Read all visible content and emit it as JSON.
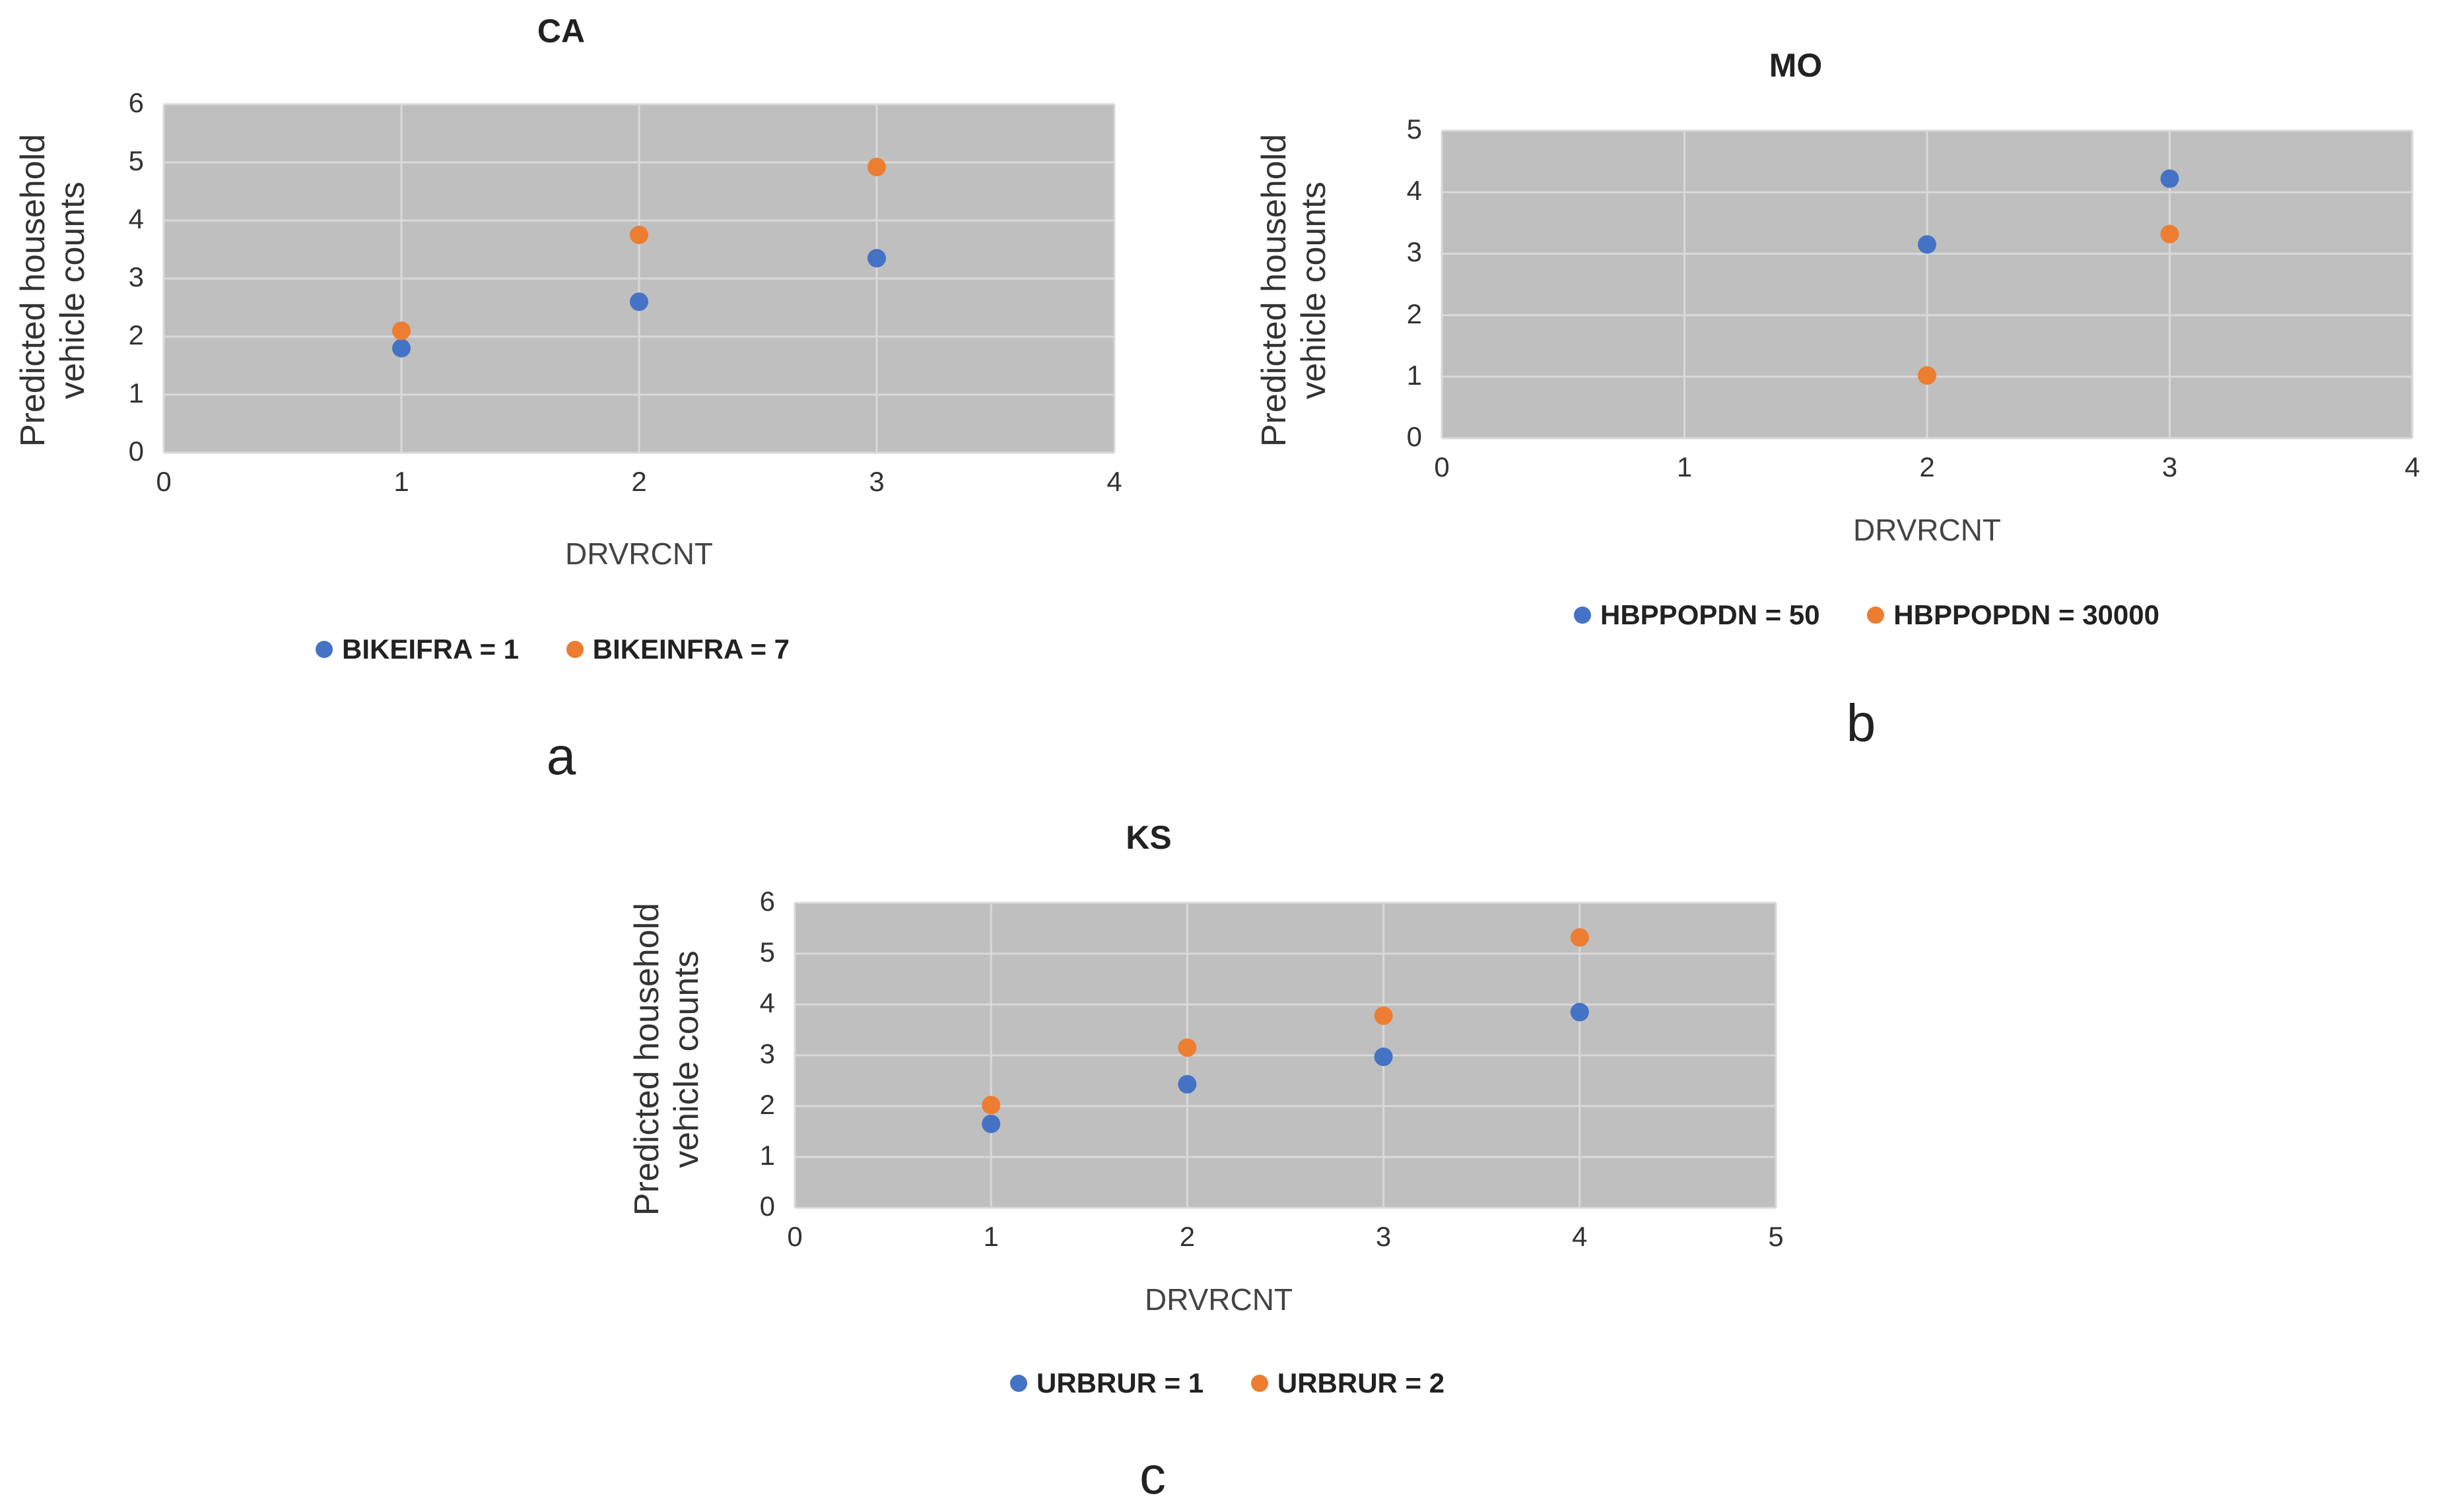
{
  "colors": {
    "series1": "#4472c4",
    "series2": "#ed7d31",
    "grid": "#d9d9d9",
    "plot_bg": "#bfbfbf"
  },
  "chart_data": [
    {
      "type": "scatter",
      "title": "CA",
      "xlabel": "DRVRCNT",
      "ylabel_line1": "Predicted household",
      "ylabel_line2": "vehicle counts",
      "xlim": [
        0,
        4
      ],
      "ylim": [
        0,
        6
      ],
      "xticks": [
        0,
        1,
        2,
        3,
        4
      ],
      "yticks": [
        0,
        1,
        2,
        3,
        4,
        5,
        6
      ],
      "grid": true,
      "legend_position": "bottom",
      "series": [
        {
          "name": "BIKEIFRA = 1",
          "x": [
            1,
            2,
            3
          ],
          "y": [
            1.8,
            2.6,
            3.35
          ]
        },
        {
          "name": "BIKEINFRA = 7",
          "x": [
            1,
            2,
            3
          ],
          "y": [
            2.1,
            3.75,
            4.92
          ]
        }
      ],
      "panel_label": "a"
    },
    {
      "type": "scatter",
      "title": "MO",
      "xlabel": "DRVRCNT",
      "ylabel_line1": "Predicted household",
      "ylabel_line2": "vehicle counts",
      "xlim": [
        0,
        4
      ],
      "ylim": [
        0,
        5
      ],
      "xticks": [
        0,
        1,
        2,
        3,
        4
      ],
      "yticks": [
        0,
        1,
        2,
        3,
        4,
        5
      ],
      "grid": true,
      "legend_position": "bottom",
      "series": [
        {
          "name": "HBPPOPDN = 50",
          "x": [
            2,
            3
          ],
          "y": [
            3.15,
            4.22
          ]
        },
        {
          "name": "HBPPOPDN = 30000",
          "x": [
            2,
            3
          ],
          "y": [
            1.02,
            3.32
          ]
        }
      ],
      "panel_label": "b"
    },
    {
      "type": "scatter",
      "title": "KS",
      "xlabel": "DRVRCNT",
      "ylabel_line1": "Predicted household",
      "ylabel_line2": "vehicle counts",
      "xlim": [
        0,
        5
      ],
      "ylim": [
        0,
        6
      ],
      "xticks": [
        0,
        1,
        2,
        3,
        4,
        5
      ],
      "yticks": [
        0,
        1,
        2,
        3,
        4,
        5,
        6
      ],
      "grid": true,
      "legend_position": "bottom",
      "series": [
        {
          "name": "URBRUR = 1",
          "x": [
            1,
            2,
            3,
            4
          ],
          "y": [
            1.65,
            2.43,
            2.97,
            3.85
          ]
        },
        {
          "name": "URBRUR = 2",
          "x": [
            1,
            2,
            3,
            4
          ],
          "y": [
            2.02,
            3.15,
            3.78,
            5.32
          ]
        }
      ],
      "panel_label": "c"
    }
  ]
}
